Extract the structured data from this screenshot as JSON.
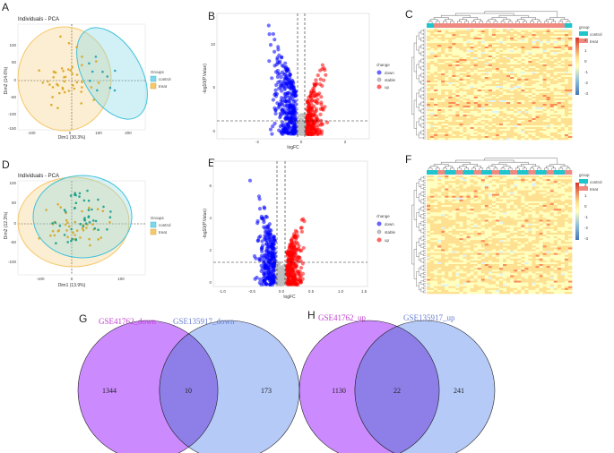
{
  "panels": {
    "A": {
      "letter": "A",
      "title": "Individuals - PCA",
      "xlabel": "Dim1 (30.3%)",
      "ylabel": "Dim2 (14.6%)",
      "xticks": [
        "-100",
        "0",
        "100",
        "200"
      ],
      "yticks": [
        "100",
        "50",
        "0",
        "-50",
        "-100",
        "-150"
      ],
      "legend_title": "Groups",
      "legend": [
        "control",
        "treat"
      ]
    },
    "B": {
      "letter": "B",
      "xlabel": "logFC",
      "ylabel": "-log10(P.Value)",
      "xticks": [
        "-2",
        "0",
        "2"
      ],
      "yticks": [
        "10",
        "5",
        "0"
      ],
      "legend_title": "change",
      "legend": [
        "down",
        "stable",
        "up"
      ]
    },
    "C": {
      "letter": "C",
      "legend_title": "group",
      "legend": [
        "control",
        "treat"
      ],
      "scale": [
        "2",
        "1",
        "0",
        "-1",
        "-2",
        "-3"
      ]
    },
    "D": {
      "letter": "D",
      "title": "Individuals - PCA",
      "xlabel": "Dim1 (13.9%)",
      "ylabel": "Dim2 (12.3%)",
      "xticks": [
        "-100",
        "0",
        "100"
      ],
      "yticks": [
        "100",
        "50",
        "0",
        "-50",
        "-100"
      ],
      "legend_title": "Groups",
      "legend": [
        "control",
        "treat"
      ]
    },
    "E": {
      "letter": "E",
      "xlabel": "logFC",
      "ylabel": "-log10(P.Value)",
      "xticks": [
        "-1.0",
        "-0.5",
        "0.0",
        "0.5",
        "1.0",
        "1.5"
      ],
      "yticks": [
        "6",
        "4",
        "2",
        "0"
      ],
      "legend_title": "change",
      "legend": [
        "down",
        "stable",
        "up"
      ]
    },
    "F": {
      "letter": "F",
      "legend_title": "group",
      "legend": [
        "control",
        "treat"
      ],
      "scale": [
        "2",
        "1",
        "0",
        "-1",
        "-2",
        "-3"
      ]
    },
    "G": {
      "letter": "G",
      "left_label": "GSE41762_down",
      "right_label": "GSE135917_down",
      "left_only": "1344",
      "overlap": "10",
      "right_only": "173"
    },
    "H": {
      "letter": "H",
      "left_label": "GSE41762_up",
      "right_label": "GSE135917_up",
      "left_only": "1130",
      "overlap": "22",
      "right_only": "241"
    }
  },
  "colors": {
    "control": "#00bfc4",
    "treat": "#f8766d",
    "down": "#0000ff",
    "up": "#ff0000",
    "stable": "#bdbdbd",
    "venn_left": "#c77dff",
    "venn_right": "#9db8f5",
    "venn_overlap": "#8e7fe8",
    "venn_left_text": "#c040d0",
    "venn_right_text": "#6a7fd0"
  }
}
